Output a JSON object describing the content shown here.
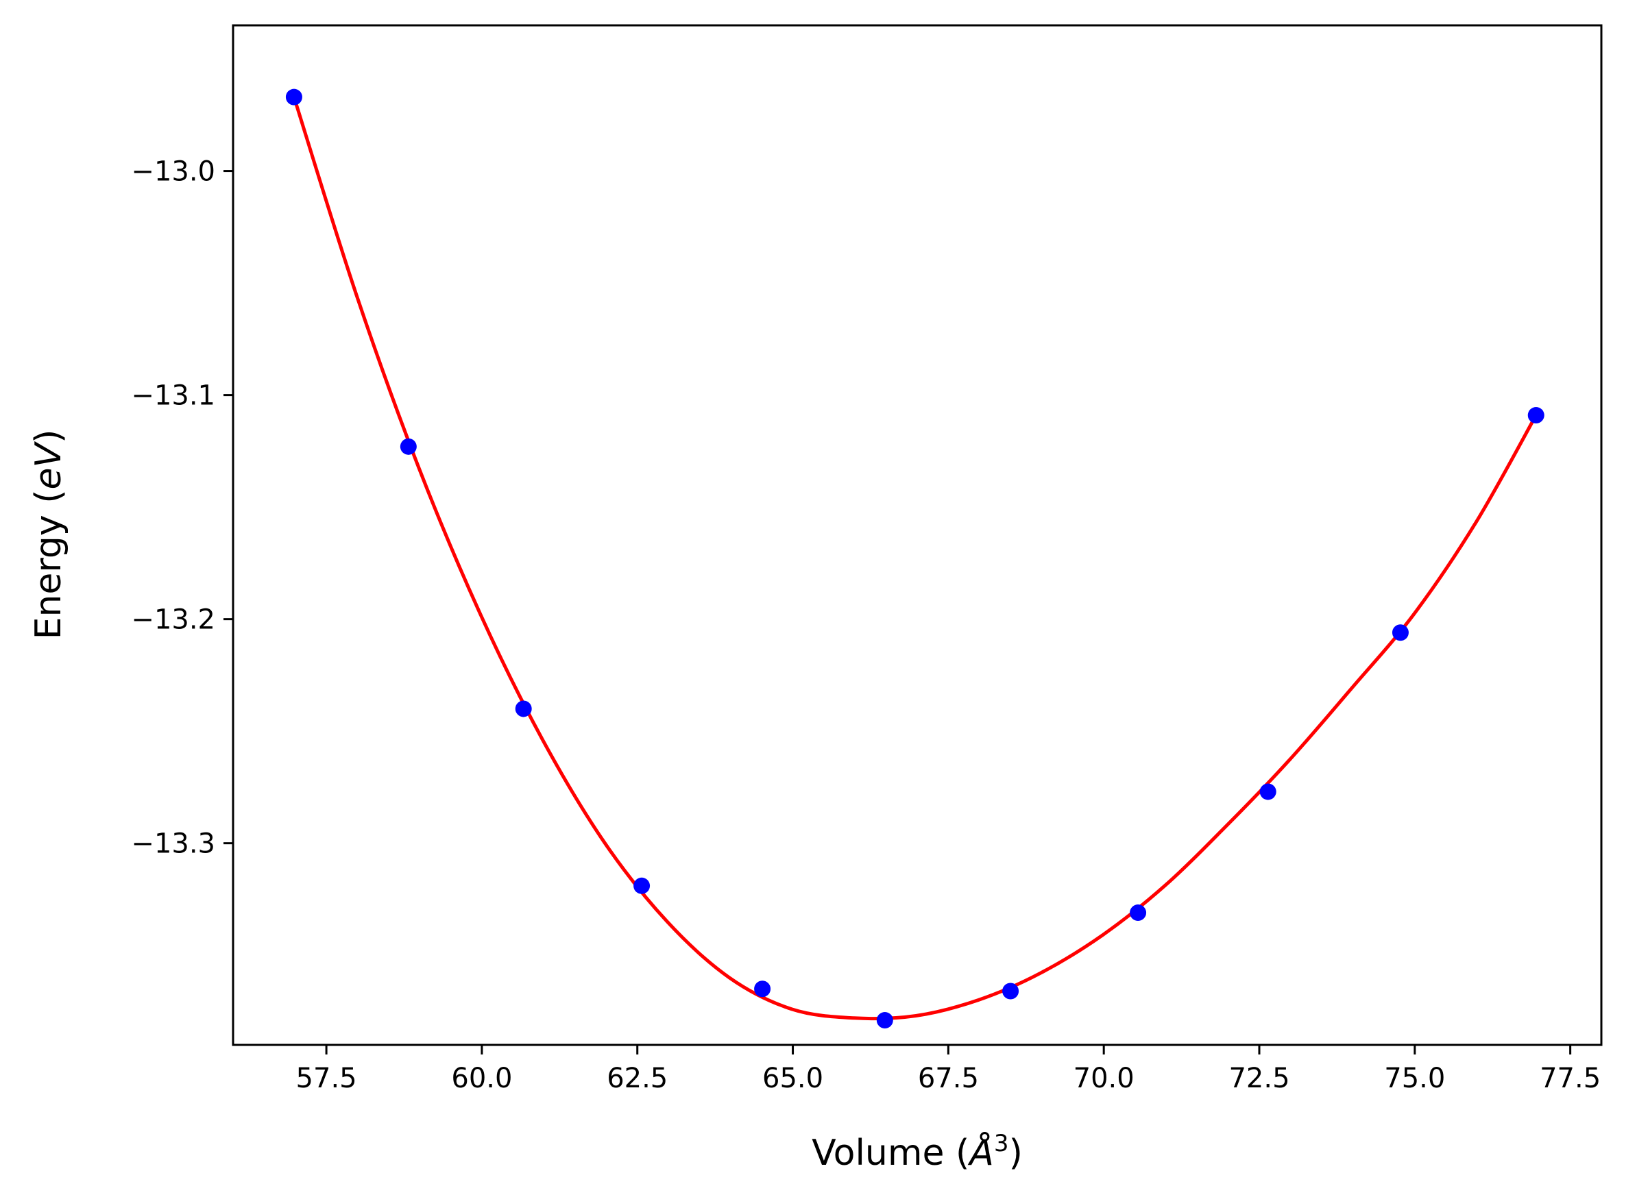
{
  "chart_data": {
    "type": "scatter",
    "xlabel": "Volume (Å³)",
    "xlabel_parts": {
      "prefix": "Volume (",
      "symbol": "Å",
      "sup": "3",
      "suffix": ")"
    },
    "ylabel": "Energy (eV)",
    "ylabel_parts": {
      "prefix": "Energy (",
      "italic": "eV",
      "suffix": ")"
    },
    "xlim": [
      56.0,
      78.0
    ],
    "ylim": [
      -13.39,
      -12.935
    ],
    "xticks": [
      57.5,
      60.0,
      62.5,
      65.0,
      67.5,
      70.0,
      72.5,
      75.0,
      77.5
    ],
    "xtick_labels": [
      "57.5",
      "60.0",
      "62.5",
      "65.0",
      "67.5",
      "70.0",
      "72.5",
      "75.0",
      "77.5"
    ],
    "yticks": [
      -13.0,
      -13.1,
      -13.2,
      -13.3
    ],
    "ytick_labels": [
      "−13.0",
      "−13.1",
      "−13.2",
      "−13.3"
    ],
    "grid": false,
    "series": [
      {
        "kind": "points",
        "color": "#0000ff",
        "x": [
          56.98,
          58.82,
          60.67,
          62.57,
          64.51,
          66.48,
          68.5,
          70.55,
          72.64,
          74.77,
          76.95
        ],
        "y": [
          -12.967,
          -13.123,
          -13.24,
          -13.319,
          -13.365,
          -13.379,
          -13.366,
          -13.331,
          -13.277,
          -13.206,
          -13.109
        ]
      },
      {
        "kind": "fit-line",
        "color": "#ff0000",
        "x": [
          56.98,
          57.98,
          58.98,
          59.98,
          60.98,
          61.98,
          62.98,
          63.98,
          64.98,
          65.98,
          66.98,
          67.98,
          68.98,
          69.98,
          70.98,
          71.98,
          72.98,
          73.98,
          74.98,
          75.98,
          76.95
        ],
        "y": [
          -12.967,
          -13.055,
          -13.132,
          -13.198,
          -13.254,
          -13.3,
          -13.335,
          -13.36,
          -13.374,
          -13.378,
          -13.377,
          -13.37,
          -13.358,
          -13.341,
          -13.319,
          -13.292,
          -13.263,
          -13.231,
          -13.198,
          -13.157,
          -13.109
        ]
      }
    ]
  }
}
